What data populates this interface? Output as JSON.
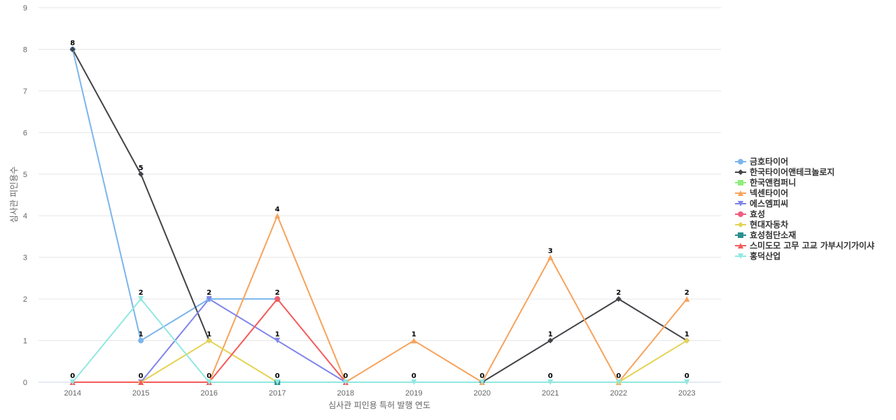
{
  "chart_data": {
    "type": "line",
    "xlabel": "심사관 피인용 특허 발행 연도",
    "ylabel": "심사관 피인용수",
    "ylim": [
      0,
      9
    ],
    "yticks": [
      0,
      1,
      2,
      3,
      4,
      5,
      6,
      7,
      8,
      9
    ],
    "categories": [
      "2014",
      "2015",
      "2016",
      "2017",
      "2018",
      "2019",
      "2020",
      "2021",
      "2022",
      "2023"
    ],
    "grid": true,
    "legend_position": "right",
    "series": [
      {
        "name": "금호타이어",
        "color": "#7cb5ec",
        "marker": "circle",
        "values": [
          8,
          1,
          2,
          2,
          null,
          null,
          null,
          null,
          null,
          null
        ]
      },
      {
        "name": "한국타이어앤테크놀로지",
        "color": "#434348",
        "marker": "diamond",
        "values": [
          8,
          5,
          1,
          null,
          null,
          null,
          0,
          1,
          2,
          1
        ]
      },
      {
        "name": "한국앤컴퍼니",
        "color": "#90ed7d",
        "marker": "square",
        "values": [
          null,
          null,
          null,
          null,
          null,
          null,
          null,
          null,
          null,
          null
        ]
      },
      {
        "name": "넥센타이어",
        "color": "#f7a35c",
        "marker": "triangle",
        "values": [
          null,
          null,
          0,
          4,
          0,
          1,
          0,
          3,
          0,
          2
        ]
      },
      {
        "name": "에스엠피씨",
        "color": "#8085e9",
        "marker": "triangle-down",
        "values": [
          null,
          0,
          2,
          1,
          0,
          null,
          null,
          null,
          null,
          null
        ]
      },
      {
        "name": "효성",
        "color": "#f15c80",
        "marker": "circle",
        "values": [
          null,
          null,
          null,
          2,
          null,
          null,
          null,
          null,
          null,
          null
        ]
      },
      {
        "name": "현대자동차",
        "color": "#e4d354",
        "marker": "diamond",
        "values": [
          null,
          0,
          1,
          0,
          null,
          null,
          null,
          null,
          0,
          1
        ]
      },
      {
        "name": "효성첨단소재",
        "color": "#2b908f",
        "marker": "square",
        "values": [
          null,
          null,
          null,
          0,
          null,
          null,
          null,
          null,
          null,
          null
        ]
      },
      {
        "name": "스미도모 고무 고교 가부시기가이샤",
        "color": "#f45b5b",
        "marker": "triangle",
        "values": [
          0,
          0,
          0,
          2,
          0,
          null,
          null,
          null,
          null,
          null
        ]
      },
      {
        "name": "홍덕산업",
        "color": "#91e8e1",
        "marker": "triangle-down",
        "values": [
          0,
          2,
          0,
          0,
          0,
          0,
          0,
          0,
          0,
          0
        ]
      }
    ],
    "data_labels": [
      {
        "x": "2014",
        "y": 8,
        "text": "8"
      },
      {
        "x": "2014",
        "y": 0,
        "text": "0"
      },
      {
        "x": "2015",
        "y": 5,
        "text": "5"
      },
      {
        "x": "2015",
        "y": 2,
        "text": "2"
      },
      {
        "x": "2015",
        "y": 1,
        "text": "1"
      },
      {
        "x": "2015",
        "y": 0,
        "text": "0"
      },
      {
        "x": "2016",
        "y": 2,
        "text": "2"
      },
      {
        "x": "2016",
        "y": 1,
        "text": "1"
      },
      {
        "x": "2016",
        "y": 0,
        "text": "0"
      },
      {
        "x": "2017",
        "y": 4,
        "text": "4"
      },
      {
        "x": "2017",
        "y": 2,
        "text": "2"
      },
      {
        "x": "2017",
        "y": 1,
        "text": "1"
      },
      {
        "x": "2017",
        "y": 0,
        "text": "0"
      },
      {
        "x": "2018",
        "y": 0,
        "text": "0"
      },
      {
        "x": "2019",
        "y": 1,
        "text": "1"
      },
      {
        "x": "2019",
        "y": 0,
        "text": "0"
      },
      {
        "x": "2020",
        "y": 0,
        "text": "0"
      },
      {
        "x": "2021",
        "y": 3,
        "text": "3"
      },
      {
        "x": "2021",
        "y": 1,
        "text": "1"
      },
      {
        "x": "2021",
        "y": 0,
        "text": "0"
      },
      {
        "x": "2022",
        "y": 2,
        "text": "2"
      },
      {
        "x": "2022",
        "y": 0,
        "text": "0"
      },
      {
        "x": "2023",
        "y": 2,
        "text": "2"
      },
      {
        "x": "2023",
        "y": 1,
        "text": "1"
      },
      {
        "x": "2023",
        "y": 0,
        "text": "0"
      }
    ]
  }
}
